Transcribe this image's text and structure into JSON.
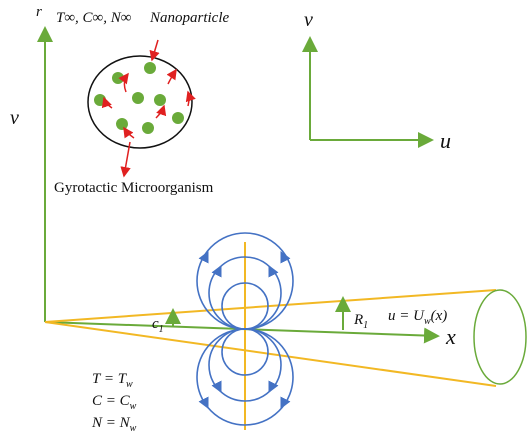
{
  "axes": {
    "r": "r",
    "v_left": "v",
    "v_right": "v",
    "u": "u",
    "x": "x"
  },
  "ambient": "T∞, C∞, N∞",
  "nanoparticle_label": "Nanoparticle",
  "microorganism_label": "Gyrotactic Microorganism",
  "c1": {
    "text": "c",
    "sub": "1"
  },
  "R1": {
    "text": "R",
    "sub": "1"
  },
  "boundary_velocity": {
    "text": "u = U",
    "sub": "w",
    "suffix": "(x)"
  },
  "wall_conditions": [
    {
      "text": "T = T",
      "sub": "w"
    },
    {
      "text": "C = C",
      "sub": "w"
    },
    {
      "text": "N = N",
      "sub": "w"
    }
  ]
}
